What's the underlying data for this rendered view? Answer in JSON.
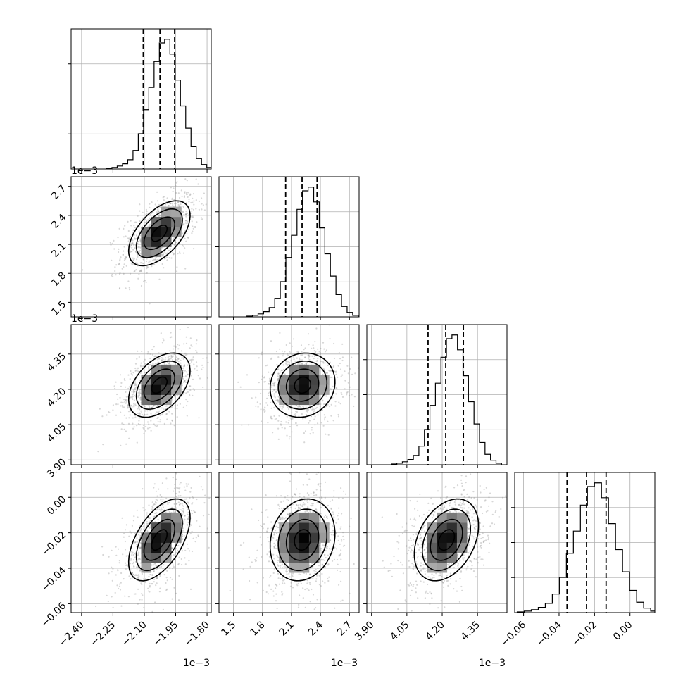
{
  "chart_data": {
    "type": "corner",
    "parameters": [
      {
        "range": [
          -2.45,
          -1.78
        ],
        "ticks": [
          -2.4,
          -2.25,
          -2.1,
          -1.95,
          -1.8
        ],
        "tick_labels": [
          "−2.40",
          "−2.25",
          "−2.10",
          "−1.95",
          "−1.80"
        ],
        "offset_label": "1e−3",
        "mean": -2.028,
        "sd": 0.07,
        "quantiles": [
          -2.105,
          -2.025,
          -1.955
        ],
        "histogram": [
          2,
          4,
          8,
          14,
          25,
          50,
          95,
          160,
          220,
          290,
          340,
          350,
          310,
          240,
          170,
          110,
          60,
          28,
          12,
          4
        ]
      },
      {
        "range": [
          1.35,
          2.8
        ],
        "ticks": [
          1.5,
          1.8,
          2.1,
          2.4,
          2.7
        ],
        "tick_labels": [
          "1.5",
          "1.8",
          "2.1",
          "2.4",
          "2.7"
        ],
        "offset_label": "1e−3",
        "mean": 2.215,
        "sd": 0.16,
        "quantiles": [
          2.04,
          2.21,
          2.365
        ],
        "histogram": [
          2,
          4,
          8,
          14,
          25,
          50,
          95,
          160,
          220,
          290,
          340,
          350,
          310,
          240,
          170,
          110,
          60,
          28,
          12,
          4
        ]
      },
      {
        "range": [
          3.88,
          4.475
        ],
        "ticks": [
          3.9,
          4.05,
          4.2,
          4.35
        ],
        "tick_labels": [
          "3.90",
          "4.05",
          "4.20",
          "4.35"
        ],
        "offset_label": "1e−3",
        "mean": 4.218,
        "sd": 0.065,
        "quantiles": [
          4.14,
          4.215,
          4.29
        ],
        "histogram": [
          2,
          4,
          8,
          14,
          25,
          50,
          95,
          160,
          220,
          290,
          340,
          350,
          310,
          240,
          170,
          110,
          60,
          28,
          12,
          4
        ]
      },
      {
        "range": [
          -0.065,
          0.014
        ],
        "ticks": [
          -0.06,
          -0.04,
          -0.02,
          0.0
        ],
        "tick_labels": [
          "−0.06",
          "−0.04",
          "−0.02",
          "0.00"
        ],
        "offset_label": "",
        "mean": -0.024,
        "sd": 0.011,
        "quantiles": [
          -0.0355,
          -0.0245,
          -0.0135
        ],
        "histogram": [
          2,
          4,
          8,
          14,
          25,
          50,
          95,
          160,
          220,
          290,
          340,
          350,
          310,
          240,
          170,
          110,
          60,
          28,
          12,
          4
        ]
      }
    ],
    "correlations": [
      {
        "i": 1,
        "j": 0,
        "rho": 0.55
      },
      {
        "i": 2,
        "j": 0,
        "rho": 0.45
      },
      {
        "i": 2,
        "j": 1,
        "rho": 0.1
      },
      {
        "i": 3,
        "j": 0,
        "rho": 0.55
      },
      {
        "i": 3,
        "j": 1,
        "rho": 0.15
      },
      {
        "i": 3,
        "j": 2,
        "rho": 0.35
      }
    ],
    "contour_levels_sigma": [
      0.5,
      1.0,
      1.5,
      2.0
    ],
    "grid": true,
    "colors": {
      "points": "#8c8c8c",
      "lines": "#000000"
    }
  }
}
